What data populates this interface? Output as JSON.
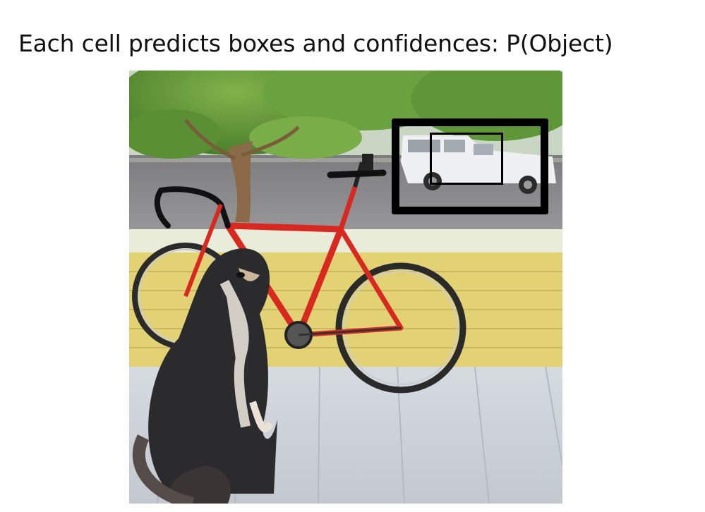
{
  "slide": {
    "title": "Each cell predicts boxes and confidences: P(Object)"
  },
  "photo": {
    "subjects": [
      "dog",
      "bicycle",
      "car"
    ]
  },
  "boxes": {
    "outer_color": "#000000",
    "inner_color": "#000000"
  }
}
